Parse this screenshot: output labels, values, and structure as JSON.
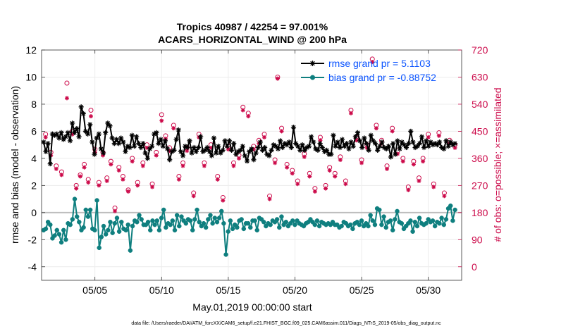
{
  "chart_data": {
    "type": "line",
    "title": "Tropics 40987 / 42254 = 97.001%",
    "subtitle": "ACARS_HORIZONTAL_WIND @ 200 hPa",
    "xlabel": "May.01,2019 00:00:00 start",
    "ylabel": "rmse and bias (model - observation)",
    "y2label": "# of obs: o=possible; ×=assimilated",
    "footer": "data file: /Users/raeder/DAI/ATM_forcXX/CAM6_setup/f.e21.FHIST_BGC.f09_025.CAM6assim.011/Diags_NTrS_2019-05/obs_diag_output.nc",
    "ylim": [
      -5,
      12
    ],
    "y2lim": [
      -45,
      720
    ],
    "xlim": [
      1,
      32.5
    ],
    "xticks": [
      5,
      10,
      15,
      20,
      25,
      30
    ],
    "xtick_labels": [
      "05/05",
      "05/10",
      "05/15",
      "05/20",
      "05/25",
      "05/30"
    ],
    "yticks": [
      -4,
      -2,
      0,
      2,
      4,
      6,
      8,
      10,
      12
    ],
    "y2ticks": [
      0,
      90,
      180,
      270,
      360,
      450,
      540,
      630,
      720
    ],
    "grid": true,
    "legend_position": "top-right",
    "colors": {
      "rmse": "#000000",
      "bias": "#0f7f7f",
      "obs": "#cc0a4a",
      "legend_text": "#0b54ff",
      "zero_line": "#bdbdbd",
      "grid": "#ececec"
    },
    "series": [
      {
        "name": "rmse grand pr = 5.1103",
        "axis": "left",
        "marker": "star",
        "values": [
          5.2,
          4.5,
          5.1,
          3.6,
          5.8,
          5.7,
          5.8,
          5.5,
          5.9,
          5.4,
          5.6,
          5.9,
          5.3,
          6.6,
          5.9,
          6.2,
          5.6,
          7.8,
          7.3,
          6.0,
          5.8,
          6.5,
          5.2,
          4.3,
          5.5,
          5.8,
          4.7,
          4.4,
          5.9,
          6.6,
          6.4,
          5.5,
          5.1,
          5.4,
          5.1,
          5.5,
          5.2,
          4.5,
          4.9,
          4.8,
          5.7,
          4.9,
          5.6,
          5.1,
          4.8,
          5.1,
          4.4,
          4.0,
          4.7,
          4.9,
          5.8,
          5.9,
          5.1,
          5.4,
          4.9,
          5.3,
          4.7,
          3.9,
          4.5,
          4.6,
          5.4,
          6.1,
          4.5,
          4.2,
          4.9,
          4.8,
          5.3,
          4.4,
          4.8,
          4.5,
          4.8,
          5.6,
          4.5,
          4.6,
          4.8,
          4.5,
          4.2,
          5.5,
          4.4,
          4.9,
          4.4,
          4.6,
          5.3,
          4.9,
          5.3,
          4.6,
          5.1,
          4.3,
          4.5,
          4.6,
          4.9,
          4.2,
          3.8,
          4.5,
          4.7,
          3.9,
          4.4,
          4.8,
          5.2,
          4.6,
          4.8,
          4.3,
          4.2,
          4.6,
          5.0,
          4.9,
          4.7,
          5.3,
          4.8,
          5.1,
          5.0,
          5.2,
          4.8,
          6.3,
          5.1,
          4.9,
          4.6,
          5.0,
          4.6,
          4.8,
          4.9,
          5.6,
          5.2,
          4.7,
          4.6,
          5.1,
          4.8,
          4.5,
          4.6,
          4.3,
          4.3,
          5.7,
          4.9,
          5.2,
          4.8,
          5.4,
          4.9,
          5.1,
          4.7,
          5.2,
          4.9,
          5.6,
          5.9,
          5.3,
          4.8,
          5.5,
          5.1,
          4.6,
          5.7,
          5.3,
          5.1,
          4.6,
          4.9,
          5.2,
          4.8,
          4.7,
          4.9,
          4.1,
          5.1,
          4.3,
          5.3,
          4.7,
          5.2,
          5.0,
          4.8,
          5.1,
          6.0,
          5.2,
          4.8,
          4.9,
          5.1,
          5.6,
          4.8,
          5.3,
          4.9,
          5.2,
          5.0,
          5.1,
          5.0,
          5.2,
          4.8,
          4.7,
          5.3,
          4.9,
          5.2,
          5.0,
          5.1
        ]
      },
      {
        "name": "bias grand pr = -0.88752",
        "axis": "left",
        "marker": "circle",
        "values": [
          -1.3,
          -1.2,
          -0.7,
          -0.9,
          -1.9,
          -1.7,
          -1.3,
          -1.6,
          -2.2,
          -1.3,
          -2.0,
          -0.8,
          -0.9,
          -0.5,
          1.0,
          -0.3,
          -0.7,
          -1.3,
          -1.1,
          0.2,
          -0.3,
          0.2,
          -1.2,
          -1.3,
          0.9,
          -2.6,
          -1.8,
          -1.0,
          -1.6,
          -1.3,
          -0.7,
          -1.5,
          -0.8,
          -0.4,
          -1.4,
          -0.7,
          -1.2,
          -1.3,
          -0.9,
          -2.8,
          -1.0,
          -0.6,
          -0.7,
          -0.2,
          -0.5,
          -0.9,
          -0.9,
          -0.7,
          -1.3,
          -0.6,
          -0.9,
          -0.6,
          -1.3,
          -0.4,
          0.2,
          -1.1,
          -0.8,
          -0.9,
          -0.6,
          -1.3,
          -0.2,
          -1.0,
          -0.3,
          -0.6,
          -0.8,
          -0.5,
          -0.6,
          -1.3,
          -0.5,
          0.2,
          -0.7,
          -1.0,
          -0.8,
          -1.1,
          -0.5,
          -0.2,
          -0.8,
          -0.4,
          -0.7,
          -0.4,
          0.1,
          -0.8,
          -3.1,
          -1.4,
          -0.6,
          -1.2,
          -0.9,
          -1.1,
          -0.6,
          -0.5,
          -1.2,
          -0.8,
          -0.8,
          -1.1,
          -0.6,
          -0.6,
          -1.3,
          -0.4,
          -0.5,
          -0.7,
          -1.0,
          -0.8,
          -0.9,
          -0.6,
          -0.7,
          -0.5,
          -1.1,
          -0.3,
          -0.9,
          -0.7,
          -1.0,
          -0.8,
          -0.6,
          -0.9,
          -0.6,
          -0.8,
          -0.9,
          -1.0,
          -0.8,
          -0.7,
          -0.5,
          -0.7,
          -0.9,
          -0.6,
          -1.0,
          -0.7,
          -0.8,
          -0.9,
          -0.8,
          -0.9,
          -0.7,
          -0.9,
          -0.9,
          -1.1,
          -1.0,
          -0.7,
          -0.8,
          -1.0,
          -0.9,
          -1.2,
          -0.8,
          -0.7,
          -0.9,
          -0.6,
          -1.0,
          -0.8,
          -1.0,
          -0.2,
          -0.6,
          -0.9,
          0.3,
          0.2,
          -0.9,
          -0.3,
          -1.1,
          -0.7,
          -0.6,
          -1.3,
          -0.5,
          0.1,
          -0.7,
          -0.8,
          -1.2,
          -1.0,
          -0.8,
          -0.6,
          -1.4,
          -0.7,
          -1.0,
          -0.4,
          -0.8,
          -0.9,
          -0.8,
          -0.5,
          -0.7,
          -0.6,
          -1.0,
          -0.7,
          -0.8,
          -0.4,
          -0.9,
          -0.5,
          0.3,
          0.5,
          -0.6,
          0.2
        ]
      },
      {
        "name": "obs possible",
        "axis": "right",
        "marker": "open-circle",
        "points": [
          [
            1.3,
            440
          ],
          [
            1.7,
            380
          ],
          [
            2.1,
            335
          ],
          [
            2.5,
            315
          ],
          [
            2.9,
            610
          ],
          [
            3.3,
            450
          ],
          [
            3.6,
            270
          ],
          [
            3.9,
            305
          ],
          [
            4.2,
            340
          ],
          [
            4.5,
            290
          ],
          [
            4.7,
            520
          ],
          [
            5.0,
            390
          ],
          [
            5.3,
            280
          ],
          [
            5.6,
            380
          ],
          [
            5.9,
            295
          ],
          [
            6.2,
            350
          ],
          [
            6.5,
            195
          ],
          [
            6.8,
            330
          ],
          [
            7.1,
            300
          ],
          [
            7.5,
            255
          ],
          [
            7.8,
            360
          ],
          [
            8.2,
            280
          ],
          [
            8.6,
            345
          ],
          [
            8.9,
            405
          ],
          [
            9.3,
            275
          ],
          [
            9.6,
            380
          ],
          [
            10.0,
            505
          ],
          [
            10.3,
            435
          ],
          [
            10.6,
            395
          ],
          [
            10.9,
            470
          ],
          [
            11.3,
            300
          ],
          [
            11.6,
            345
          ],
          [
            11.9,
            395
          ],
          [
            12.4,
            245
          ],
          [
            12.8,
            440
          ],
          [
            13.2,
            345
          ],
          [
            13.7,
            405
          ],
          [
            14.2,
            300
          ],
          [
            14.6,
            230
          ],
          [
            15.0,
            400
          ],
          [
            15.4,
            345
          ],
          [
            15.8,
            370
          ],
          [
            16.1,
            530
          ],
          [
            16.5,
            510
          ],
          [
            16.9,
            400
          ],
          [
            17.3,
            420
          ],
          [
            17.7,
            440
          ],
          [
            18.1,
            235
          ],
          [
            18.5,
            355
          ],
          [
            18.7,
            630
          ],
          [
            19.0,
            460
          ],
          [
            19.4,
            340
          ],
          [
            19.8,
            320
          ],
          [
            20.2,
            285
          ],
          [
            20.7,
            375
          ],
          [
            21.1,
            310
          ],
          [
            21.5,
            260
          ],
          [
            21.9,
            430
          ],
          [
            22.3,
            270
          ],
          [
            22.6,
            330
          ],
          [
            23.0,
            310
          ],
          [
            23.4,
            365
          ],
          [
            23.8,
            285
          ],
          [
            24.2,
            520
          ],
          [
            24.6,
            430
          ],
          [
            25.0,
            355
          ],
          [
            25.4,
            405
          ],
          [
            25.8,
            690
          ],
          [
            26.1,
            470
          ],
          [
            26.5,
            420
          ],
          [
            26.9,
            335
          ],
          [
            27.3,
            460
          ],
          [
            27.7,
            385
          ],
          [
            28.1,
            360
          ],
          [
            28.5,
            265
          ],
          [
            28.9,
            350
          ],
          [
            29.3,
            295
          ],
          [
            29.6,
            360
          ],
          [
            30.0,
            440
          ],
          [
            30.4,
            275
          ],
          [
            30.8,
            445
          ],
          [
            31.2,
            245
          ],
          [
            31.6,
            420
          ],
          [
            32.0,
            405
          ]
        ]
      },
      {
        "name": "obs assimilated",
        "axis": "right",
        "marker": "asterisk",
        "points": [
          [
            1.3,
            430
          ],
          [
            1.7,
            370
          ],
          [
            2.1,
            325
          ],
          [
            2.5,
            305
          ],
          [
            2.9,
            560
          ],
          [
            3.3,
            440
          ],
          [
            3.6,
            260
          ],
          [
            3.9,
            300
          ],
          [
            4.2,
            330
          ],
          [
            4.5,
            280
          ],
          [
            4.7,
            500
          ],
          [
            5.0,
            380
          ],
          [
            5.3,
            270
          ],
          [
            5.6,
            370
          ],
          [
            5.9,
            285
          ],
          [
            6.2,
            340
          ],
          [
            6.5,
            185
          ],
          [
            6.8,
            320
          ],
          [
            7.1,
            290
          ],
          [
            7.5,
            250
          ],
          [
            7.8,
            350
          ],
          [
            8.2,
            270
          ],
          [
            8.6,
            335
          ],
          [
            8.9,
            395
          ],
          [
            9.3,
            265
          ],
          [
            9.6,
            370
          ],
          [
            10.0,
            485
          ],
          [
            10.3,
            425
          ],
          [
            10.6,
            385
          ],
          [
            10.9,
            460
          ],
          [
            11.3,
            290
          ],
          [
            11.6,
            335
          ],
          [
            11.9,
            385
          ],
          [
            12.4,
            235
          ],
          [
            12.8,
            430
          ],
          [
            13.2,
            335
          ],
          [
            13.7,
            395
          ],
          [
            14.2,
            290
          ],
          [
            14.6,
            220
          ],
          [
            15.0,
            390
          ],
          [
            15.4,
            335
          ],
          [
            15.8,
            360
          ],
          [
            16.1,
            520
          ],
          [
            16.5,
            500
          ],
          [
            16.9,
            390
          ],
          [
            17.3,
            410
          ],
          [
            17.7,
            430
          ],
          [
            18.1,
            225
          ],
          [
            18.5,
            345
          ],
          [
            18.7,
            625
          ],
          [
            19.0,
            450
          ],
          [
            19.4,
            330
          ],
          [
            19.8,
            310
          ],
          [
            20.2,
            275
          ],
          [
            20.7,
            365
          ],
          [
            21.1,
            300
          ],
          [
            21.5,
            250
          ],
          [
            21.9,
            420
          ],
          [
            22.3,
            260
          ],
          [
            22.6,
            320
          ],
          [
            23.0,
            300
          ],
          [
            23.4,
            355
          ],
          [
            23.8,
            275
          ],
          [
            24.2,
            510
          ],
          [
            24.6,
            420
          ],
          [
            25.0,
            345
          ],
          [
            25.4,
            395
          ],
          [
            25.8,
            680
          ],
          [
            26.1,
            460
          ],
          [
            26.5,
            410
          ],
          [
            26.9,
            325
          ],
          [
            27.3,
            450
          ],
          [
            27.7,
            375
          ],
          [
            28.1,
            350
          ],
          [
            28.5,
            255
          ],
          [
            28.9,
            340
          ],
          [
            29.3,
            285
          ],
          [
            29.6,
            350
          ],
          [
            30.0,
            430
          ],
          [
            30.4,
            265
          ],
          [
            30.8,
            435
          ],
          [
            31.2,
            235
          ],
          [
            31.6,
            410
          ],
          [
            32.0,
            395
          ]
        ]
      }
    ]
  }
}
